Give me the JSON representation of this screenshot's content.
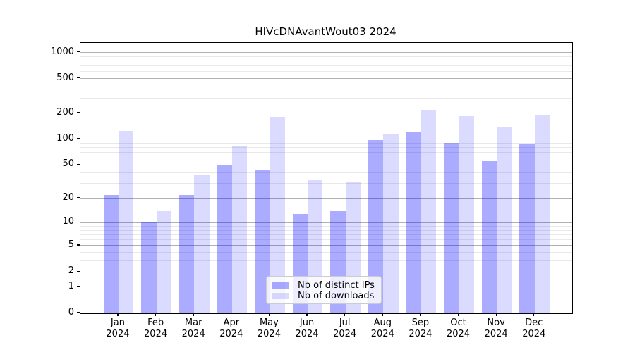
{
  "title": "HIVcDNAvantWout03 2024",
  "colors": {
    "distinct_ips": "rgba(0,0,255,0.33)",
    "downloads": "rgba(0,0,255,0.14)",
    "major_grid": "#b0b0b0",
    "minor_grid": "#e9e9e9",
    "axis": "#000000",
    "background": "#ffffff"
  },
  "legend": {
    "items": [
      {
        "label": "Nb of distinct IPs",
        "color": "rgba(0,0,255,0.33)"
      },
      {
        "label": "Nb of downloads",
        "color": "rgba(0,0,255,0.14)"
      }
    ]
  },
  "chart_data": {
    "type": "bar",
    "title": "HIVcDNAvantWout03 2024",
    "categories": [
      "Jan",
      "Feb",
      "Mar",
      "Apr",
      "May",
      "Jun",
      "Jul",
      "Aug",
      "Sep",
      "Oct",
      "Nov",
      "Dec"
    ],
    "year_label": "2024",
    "series": [
      {
        "name": "Nb of distinct IPs",
        "color": "rgba(0,0,255,0.33)",
        "values": [
          22,
          10,
          22,
          49,
          43,
          13,
          14,
          97,
          120,
          90,
          56,
          89
        ]
      },
      {
        "name": "Nb of downloads",
        "color": "rgba(0,0,255,0.14)",
        "values": [
          125,
          14,
          38,
          83,
          180,
          33,
          31,
          115,
          220,
          185,
          140,
          192
        ]
      }
    ],
    "xlabel": "",
    "ylabel": "",
    "yscale": "log1p",
    "ylim": [
      0,
      1290
    ],
    "yticks": [
      0,
      1,
      2,
      5,
      10,
      20,
      50,
      100,
      200,
      500,
      1000
    ],
    "minor_yticks": [
      3,
      4,
      6,
      7,
      8,
      9,
      30,
      40,
      60,
      70,
      80,
      90,
      300,
      400,
      600,
      700,
      800,
      900
    ],
    "grid": "both",
    "legend_position": "lower-center"
  }
}
